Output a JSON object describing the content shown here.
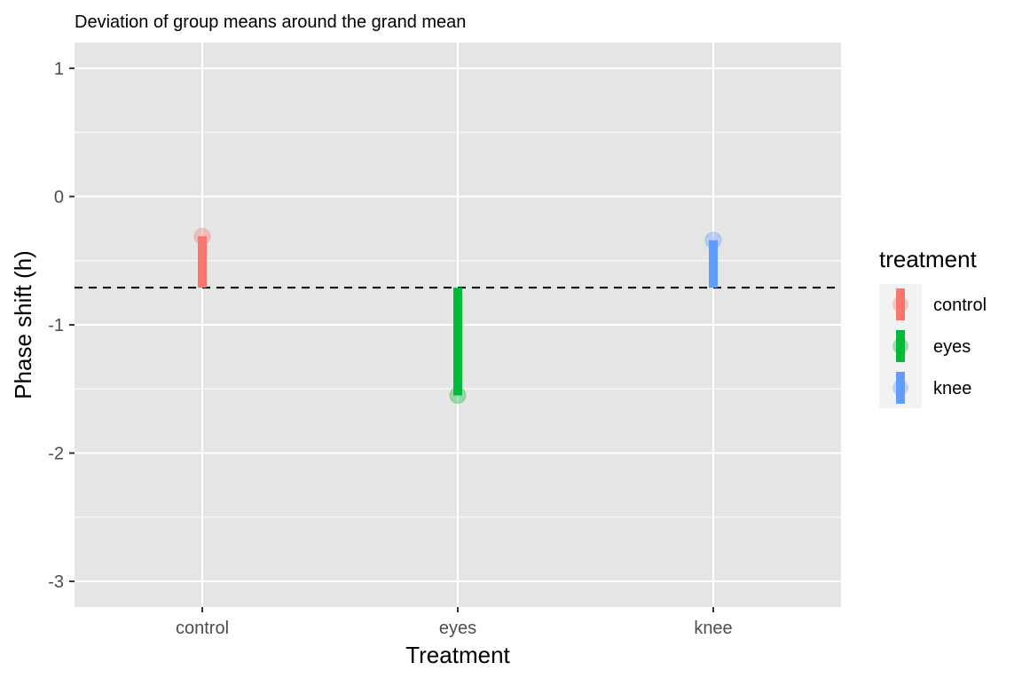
{
  "chart_data": {
    "type": "lollipop",
    "title": "Deviation of group means around the grand mean",
    "xlabel": "Treatment",
    "ylabel": "Phase shift (h)",
    "categories": [
      "control",
      "eyes",
      "knee"
    ],
    "values": [
      -0.31,
      -1.55,
      -0.34
    ],
    "reference_line": {
      "value": -0.71,
      "style": "dashed"
    },
    "ylim": [
      -3.2,
      1.2
    ],
    "yticks": [
      1,
      0,
      -1,
      -2,
      -3
    ],
    "ytick_labels": [
      "1",
      "0",
      "-1",
      "-2",
      "-3"
    ],
    "grid": true,
    "legend": {
      "title": "treatment",
      "placement": "right",
      "entries": [
        "control",
        "eyes",
        "knee"
      ]
    },
    "colors": {
      "control": "#F8766D",
      "eyes": "#00BA38",
      "knee": "#619CFF",
      "panel_background": "#E5E5E5",
      "gridline": "#FFFFFF",
      "reference_line": "#000000"
    }
  }
}
